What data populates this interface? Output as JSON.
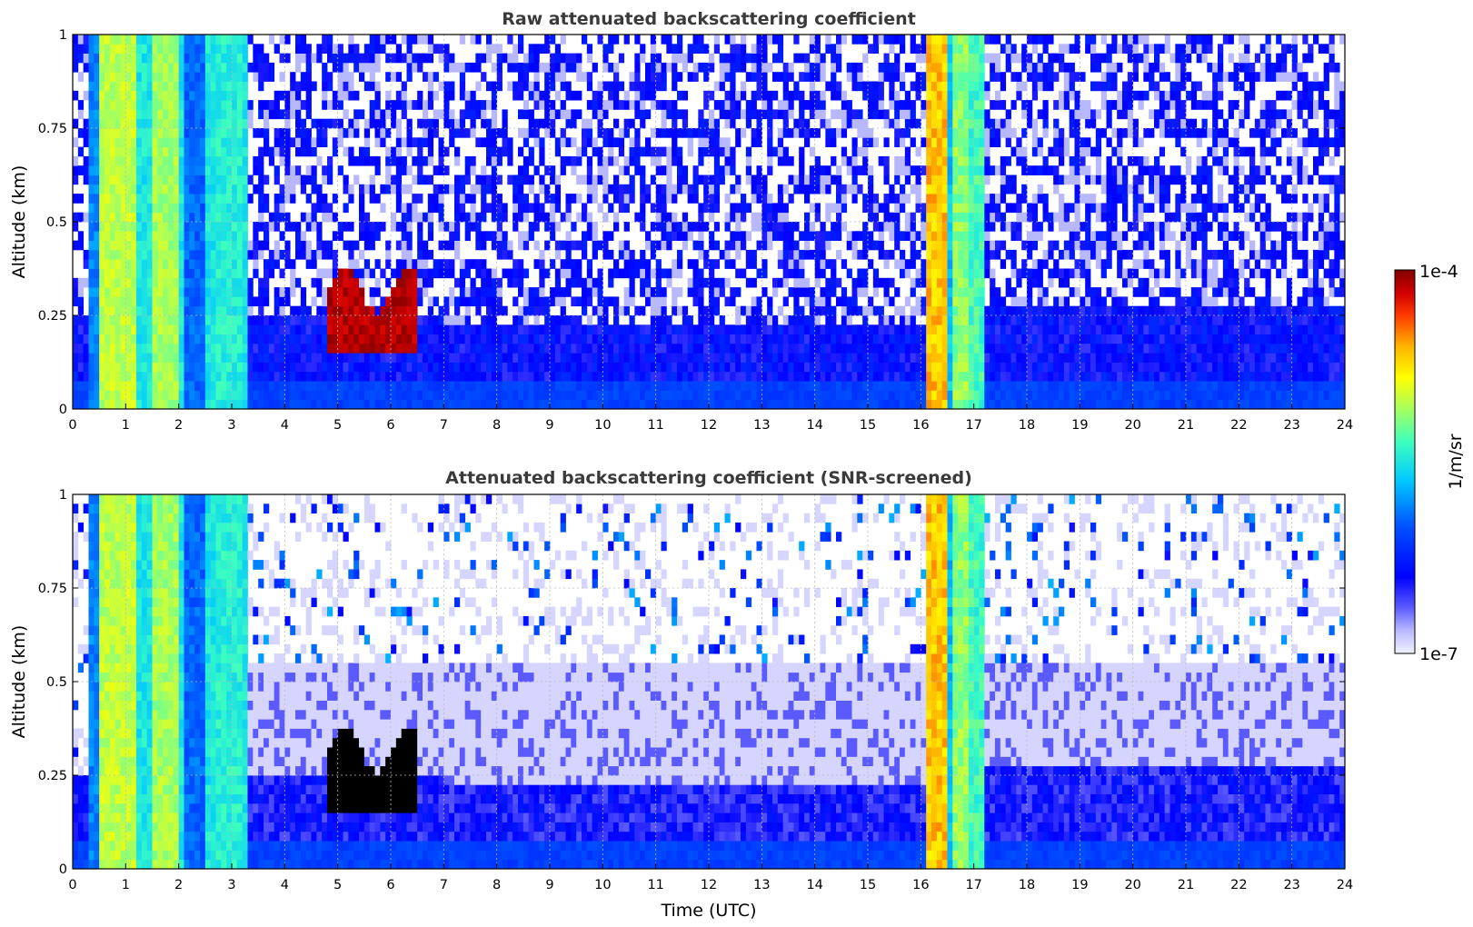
{
  "chart_data": [
    {
      "type": "heatmap",
      "title": "Raw attenuated backscattering coefficient",
      "xlabel": "",
      "ylabel": "Altitude (km)",
      "xlim": [
        0,
        24
      ],
      "ylim": [
        0,
        1
      ],
      "xticks": [
        0,
        1,
        2,
        3,
        4,
        5,
        6,
        7,
        8,
        9,
        10,
        11,
        12,
        13,
        14,
        15,
        16,
        17,
        18,
        19,
        20,
        21,
        22,
        23,
        24
      ],
      "yticks": [
        0,
        0.25,
        0.5,
        0.75,
        1
      ],
      "ytick_labels": [
        "0",
        "0.25",
        "0.5",
        "0.75",
        "1"
      ],
      "grid": true,
      "features": [
        {
          "name": "dense layer",
          "x_range": [
            0.2,
            3.3
          ],
          "value_level": "high (~1e-5)"
        },
        {
          "name": "fog/cloud",
          "x_range": [
            4.8,
            6.5
          ],
          "alt_range": [
            0.15,
            0.32
          ],
          "value_level": "max (~1e-4)"
        },
        {
          "name": "dense layer",
          "x_range": [
            16.1,
            17.2
          ],
          "value_level": "high (~3e-5)"
        },
        {
          "name": "near-surface aerosol",
          "x_range": [
            3.3,
            24
          ],
          "alt_range": [
            0,
            0.25
          ],
          "value_level": "low (~1e-6)"
        }
      ]
    },
    {
      "type": "heatmap",
      "title": "Attenuated backscattering coefficient (SNR-screened)",
      "xlabel": "Time (UTC)",
      "ylabel": "Altitude (km)",
      "xlim": [
        0,
        24
      ],
      "ylim": [
        0,
        1
      ],
      "xticks": [
        0,
        1,
        2,
        3,
        4,
        5,
        6,
        7,
        8,
        9,
        10,
        11,
        12,
        13,
        14,
        15,
        16,
        17,
        18,
        19,
        20,
        21,
        22,
        23,
        24
      ],
      "yticks": [
        0,
        0.25,
        0.5,
        0.75,
        1
      ],
      "ytick_labels": [
        "0",
        "0.25",
        "0.5",
        "0.75",
        "1"
      ],
      "grid": true,
      "features": [
        {
          "name": "dense layer",
          "x_range": [
            0.2,
            3.3
          ],
          "value_level": "high (~1e-5)"
        },
        {
          "name": "fog/cloud",
          "x_range": [
            4.8,
            6.5
          ],
          "alt_range": [
            0.15,
            0.35
          ],
          "value_level": "saturated"
        },
        {
          "name": "dense layer",
          "x_range": [
            16.1,
            17.2
          ],
          "value_level": "high (~3e-5)"
        },
        {
          "name": "boundary layer",
          "x_range": [
            3.3,
            24
          ],
          "alt_range": [
            0,
            0.3
          ],
          "value_level": "low (~5e-7)"
        }
      ]
    }
  ],
  "colorbar": {
    "label": "1/m/sr",
    "max_label": "1e-4",
    "min_label": "1e-7",
    "scale": "log",
    "range": [
      1e-07,
      0.0001
    ]
  }
}
